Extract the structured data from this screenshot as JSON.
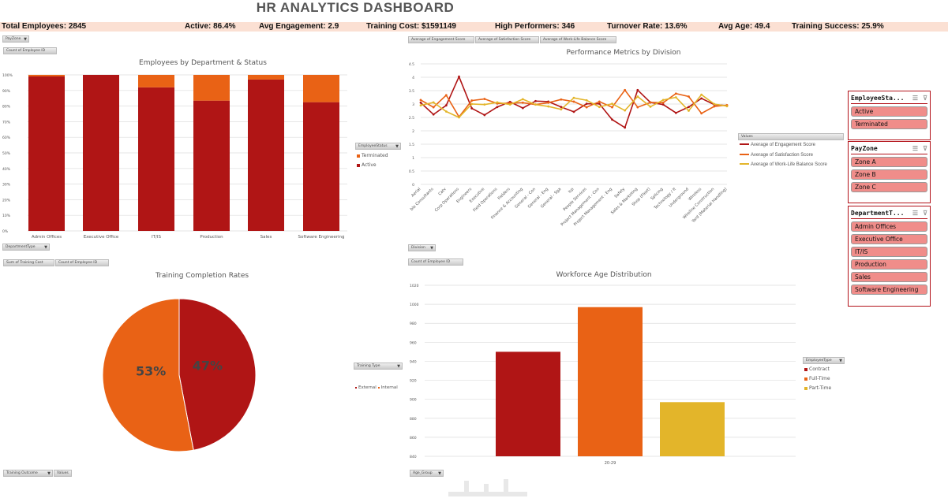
{
  "header": {
    "title": "HR ANALYTICS DASHBOARD"
  },
  "kpis": [
    {
      "label": "Total Employees: 2845"
    },
    {
      "label": "Active: 86.4%"
    },
    {
      "label": "Avg Engagement: 2.9"
    },
    {
      "label": "Training Cost: $1591149"
    },
    {
      "label": "High Performers: 346"
    },
    {
      "label": "Turnover Rate: 13.6%"
    },
    {
      "label": "Avg Age: 49.4"
    },
    {
      "label": "Training Success: 25.9%"
    }
  ],
  "colors": {
    "dark_red": "#b01515",
    "orange": "#e96215",
    "yellow": "#e3b52a",
    "kpi_bg": "#fbe0d3",
    "slicer_item": "#f08d8a"
  },
  "field_buttons": {
    "c1": {
      "filter": "PayZone",
      "value": "Count of Employee ID",
      "axis": "DepartmentType",
      "legend": "EmployeeStatus"
    },
    "c2": {
      "values": [
        "Average of Engagement Score",
        "Average of Satisfaction Score",
        "Average of Work-Life Balance Score"
      ],
      "axis": "Division",
      "legend": "Values"
    },
    "c3": {
      "values": [
        "Sum of Training Cost",
        "Count of Employee ID"
      ],
      "legend": "Training Type",
      "axis": "Training Outcome",
      "axis2": "Values"
    },
    "c4": {
      "value": "Count of Employee ID",
      "legend": "EmployeeType",
      "axis": "Age_Group"
    }
  },
  "chart_data": [
    {
      "type": "bar",
      "stacked": "percent",
      "title": "Employees by Department & Status",
      "categories": [
        "Admin Offices",
        "Executive Office",
        "IT/IS",
        "Production",
        "Sales",
        "Software Engineering"
      ],
      "yticks": [
        "0%",
        "10%",
        "20%",
        "30%",
        "40%",
        "50%",
        "60%",
        "70%",
        "80%",
        "90%",
        "100%"
      ],
      "ylim": [
        0,
        100
      ],
      "series": [
        {
          "name": "Active",
          "values": [
            99,
            100,
            92,
            83.5,
            97,
            82.5
          ]
        },
        {
          "name": "Terminated",
          "values": [
            1,
            0,
            8,
            16.5,
            3,
            17.5
          ]
        }
      ],
      "legend": [
        "Terminated",
        "Active"
      ],
      "legend_position": "right",
      "grid": true
    },
    {
      "type": "line",
      "title": "Performance Metrics by Division",
      "categories": [
        "Aerial",
        "Billable Consultants",
        "Catv",
        "Corp Operations",
        "Engineers",
        "Executive",
        "Field Operations",
        "Fielders",
        "Finance & Accounting",
        "General - Con",
        "General - Eng",
        "General - Sga",
        "Isp",
        "People Services",
        "Project Management - Con",
        "Project Management - Eng",
        "Safety",
        "Sales & Marketing",
        "Shop (Fleet)",
        "Splicing",
        "Technology / It",
        "Underground",
        "Wireless",
        "Wireline Construction",
        "Yard (Material Handling)"
      ],
      "category_labels": [
        "Aerial",
        "ble Consultants",
        "Catv",
        "Corp Operations",
        "Engineers",
        "Executive",
        "Field Operations",
        "Fielders",
        "Finance & Accounting",
        "General - Con",
        "General - Eng",
        "General - Sga",
        "Isp",
        "People Services",
        "Project Management - Con",
        "Project Management - Eng",
        "Safety",
        "Sales & Marketing",
        "Shop (Fleet)",
        "Splicing",
        "Technology / It",
        "Underground",
        "Wireless",
        "Wireline Construction",
        "Yard (Material Handling)"
      ],
      "yticks": [
        "0",
        "0.5",
        "1",
        "1.5",
        "2",
        "2.5",
        "3",
        "3.5",
        "4",
        "4.5"
      ],
      "ylim": [
        0,
        4.5
      ],
      "series": [
        {
          "name": "Average of Engagement Score",
          "values": [
            3.05,
            2.61,
            2.95,
            4.02,
            2.84,
            2.59,
            2.89,
            3.08,
            2.85,
            3.11,
            3.09,
            2.89,
            2.71,
            3.01,
            3.01,
            2.42,
            2.12,
            3.52,
            3.06,
            2.98,
            2.67,
            2.89,
            3.21,
            2.98,
            2.94
          ]
        },
        {
          "name": "Average of Satisfaction Score",
          "values": [
            3.15,
            2.88,
            3.33,
            2.52,
            3.13,
            3.19,
            3.02,
            3.03,
            3.05,
            2.98,
            3.05,
            3.17,
            3.09,
            2.88,
            3.09,
            2.88,
            3.52,
            2.88,
            3.06,
            3.05,
            3.39,
            3.28,
            2.65,
            2.91,
            2.96
          ]
        },
        {
          "name": "Average of Work-Life Balance Score",
          "values": [
            2.95,
            3.06,
            2.72,
            2.5,
            3.0,
            2.98,
            3.06,
            2.98,
            3.18,
            2.98,
            2.91,
            2.8,
            3.23,
            3.14,
            2.89,
            3.01,
            2.76,
            3.28,
            2.9,
            3.15,
            3.25,
            2.75,
            3.35,
            3.0,
            2.92
          ]
        }
      ],
      "legend_position": "right",
      "grid": true
    },
    {
      "type": "pie",
      "title": "Training Completion Rates",
      "slices": [
        {
          "name": "External",
          "value": 47,
          "label": "47%"
        },
        {
          "name": "Internal",
          "value": 53,
          "label": "53%"
        }
      ],
      "legend": [
        "External",
        "Internal"
      ],
      "legend_position": "right"
    },
    {
      "type": "bar",
      "title": "Workforce Age Distribution",
      "categories": [
        "20-29"
      ],
      "yticks": [
        "840",
        "860",
        "880",
        "900",
        "920",
        "940",
        "960",
        "980",
        "1000",
        "1020"
      ],
      "ylim": [
        840,
        1020
      ],
      "series": [
        {
          "name": "Contract",
          "values": [
            950
          ]
        },
        {
          "name": "Full-Time",
          "values": [
            997
          ]
        },
        {
          "name": "Part-Time",
          "values": [
            897
          ]
        }
      ],
      "legend_position": "right",
      "grid": true
    }
  ],
  "slicers": [
    {
      "title": "EmployeeSta...",
      "items": [
        "Active",
        "Terminated"
      ]
    },
    {
      "title": "PayZone",
      "items": [
        "Zone A",
        "Zone B",
        "Zone C"
      ]
    },
    {
      "title": "DepartmentT...",
      "items": [
        "Admin Offices",
        "Executive Office",
        "IT/IS",
        "Production",
        "Sales",
        "Software Engineering"
      ]
    }
  ],
  "watermark": "خمسات"
}
